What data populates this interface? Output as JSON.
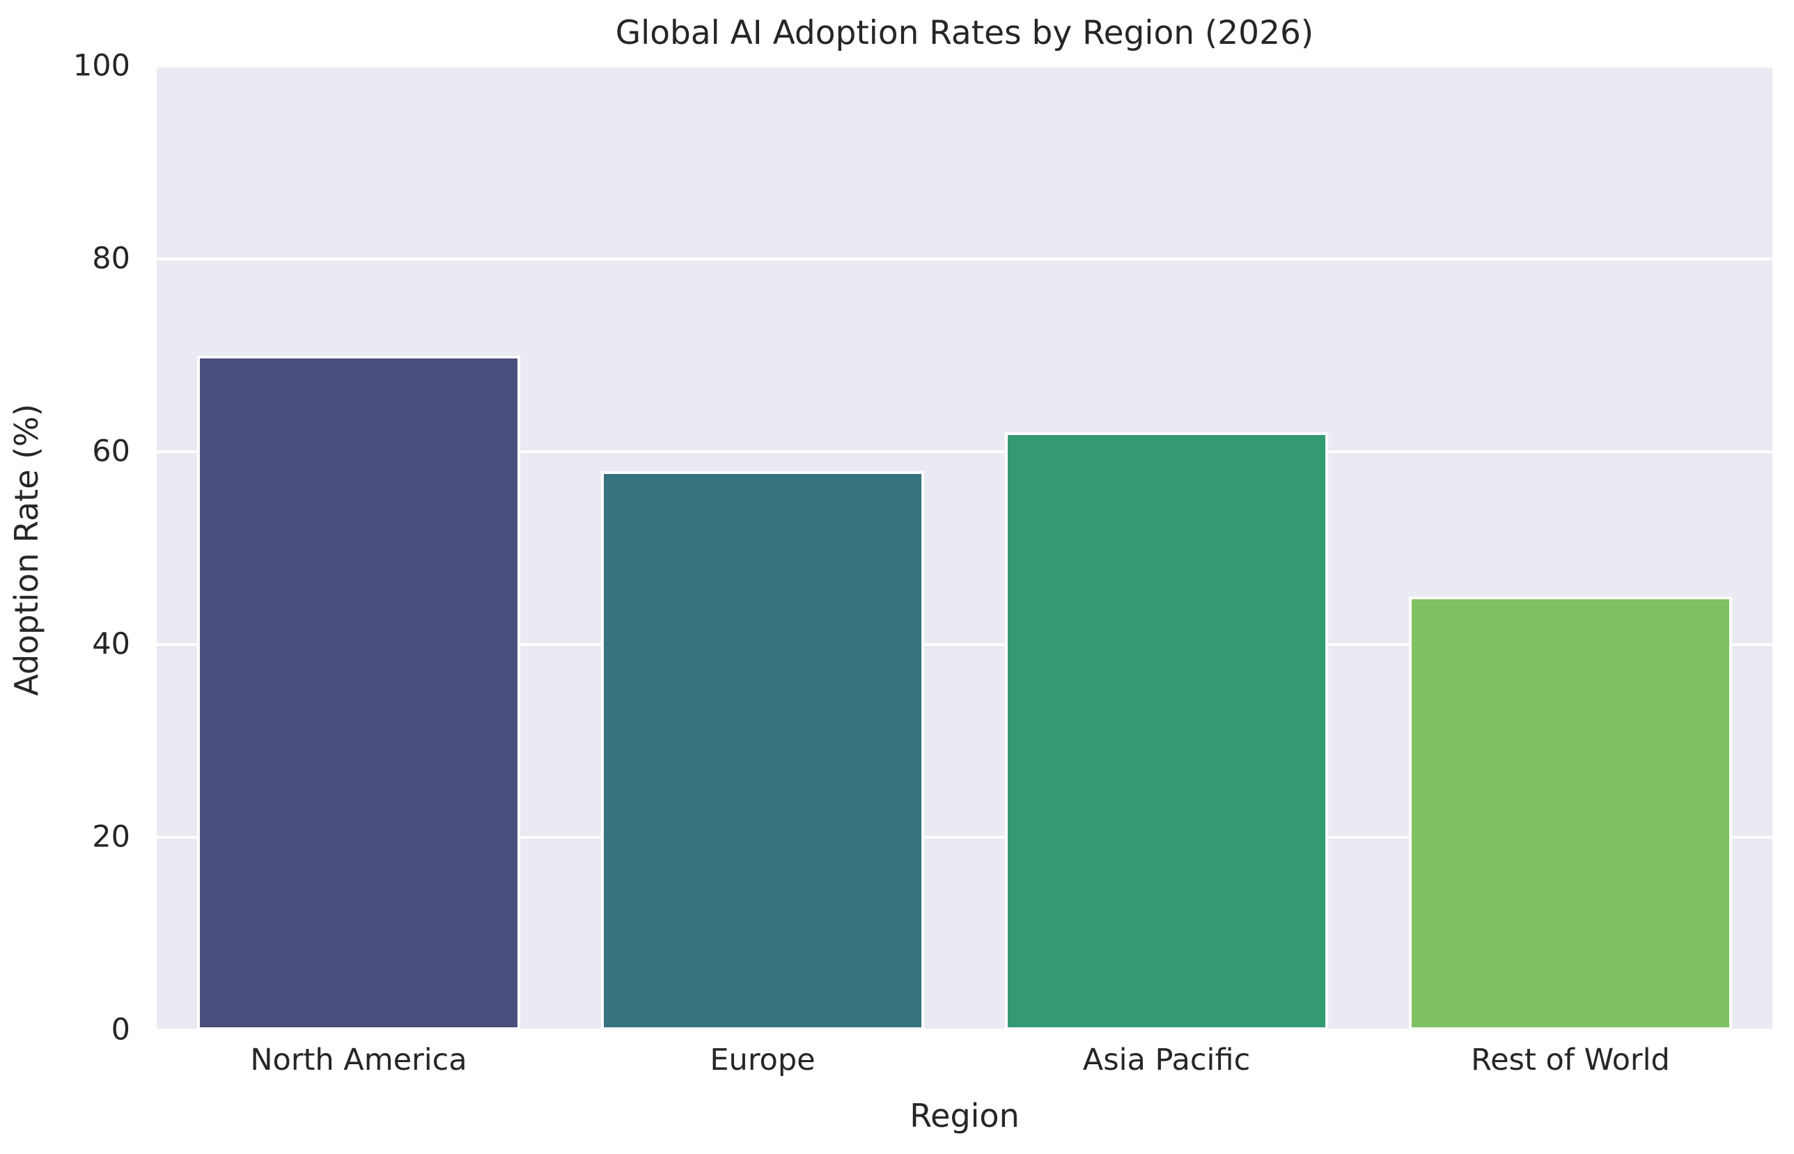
{
  "chart_data": {
    "type": "bar",
    "title": "Global AI Adoption Rates by Region (2026)",
    "xlabel": "Region",
    "ylabel": "Adoption Rate (%)",
    "categories": [
      "North America",
      "Europe",
      "Asia Pacific",
      "Rest of World"
    ],
    "values": [
      70,
      58,
      62,
      45
    ],
    "bar_colors": [
      "#4a4f7d",
      "#36737f",
      "#339a73",
      "#7fc163"
    ],
    "bar_edge_color": "#ffffff",
    "bar_width_fraction": 0.8,
    "ylim": [
      0,
      100
    ],
    "yticks": [
      0,
      20,
      40,
      60,
      80,
      100
    ],
    "grid": {
      "horizontal": true,
      "color": "#ffffff"
    },
    "plot_background": "#eaeaf2",
    "figure_background": "#ffffff",
    "text_color": "#262626",
    "legend": "none"
  }
}
